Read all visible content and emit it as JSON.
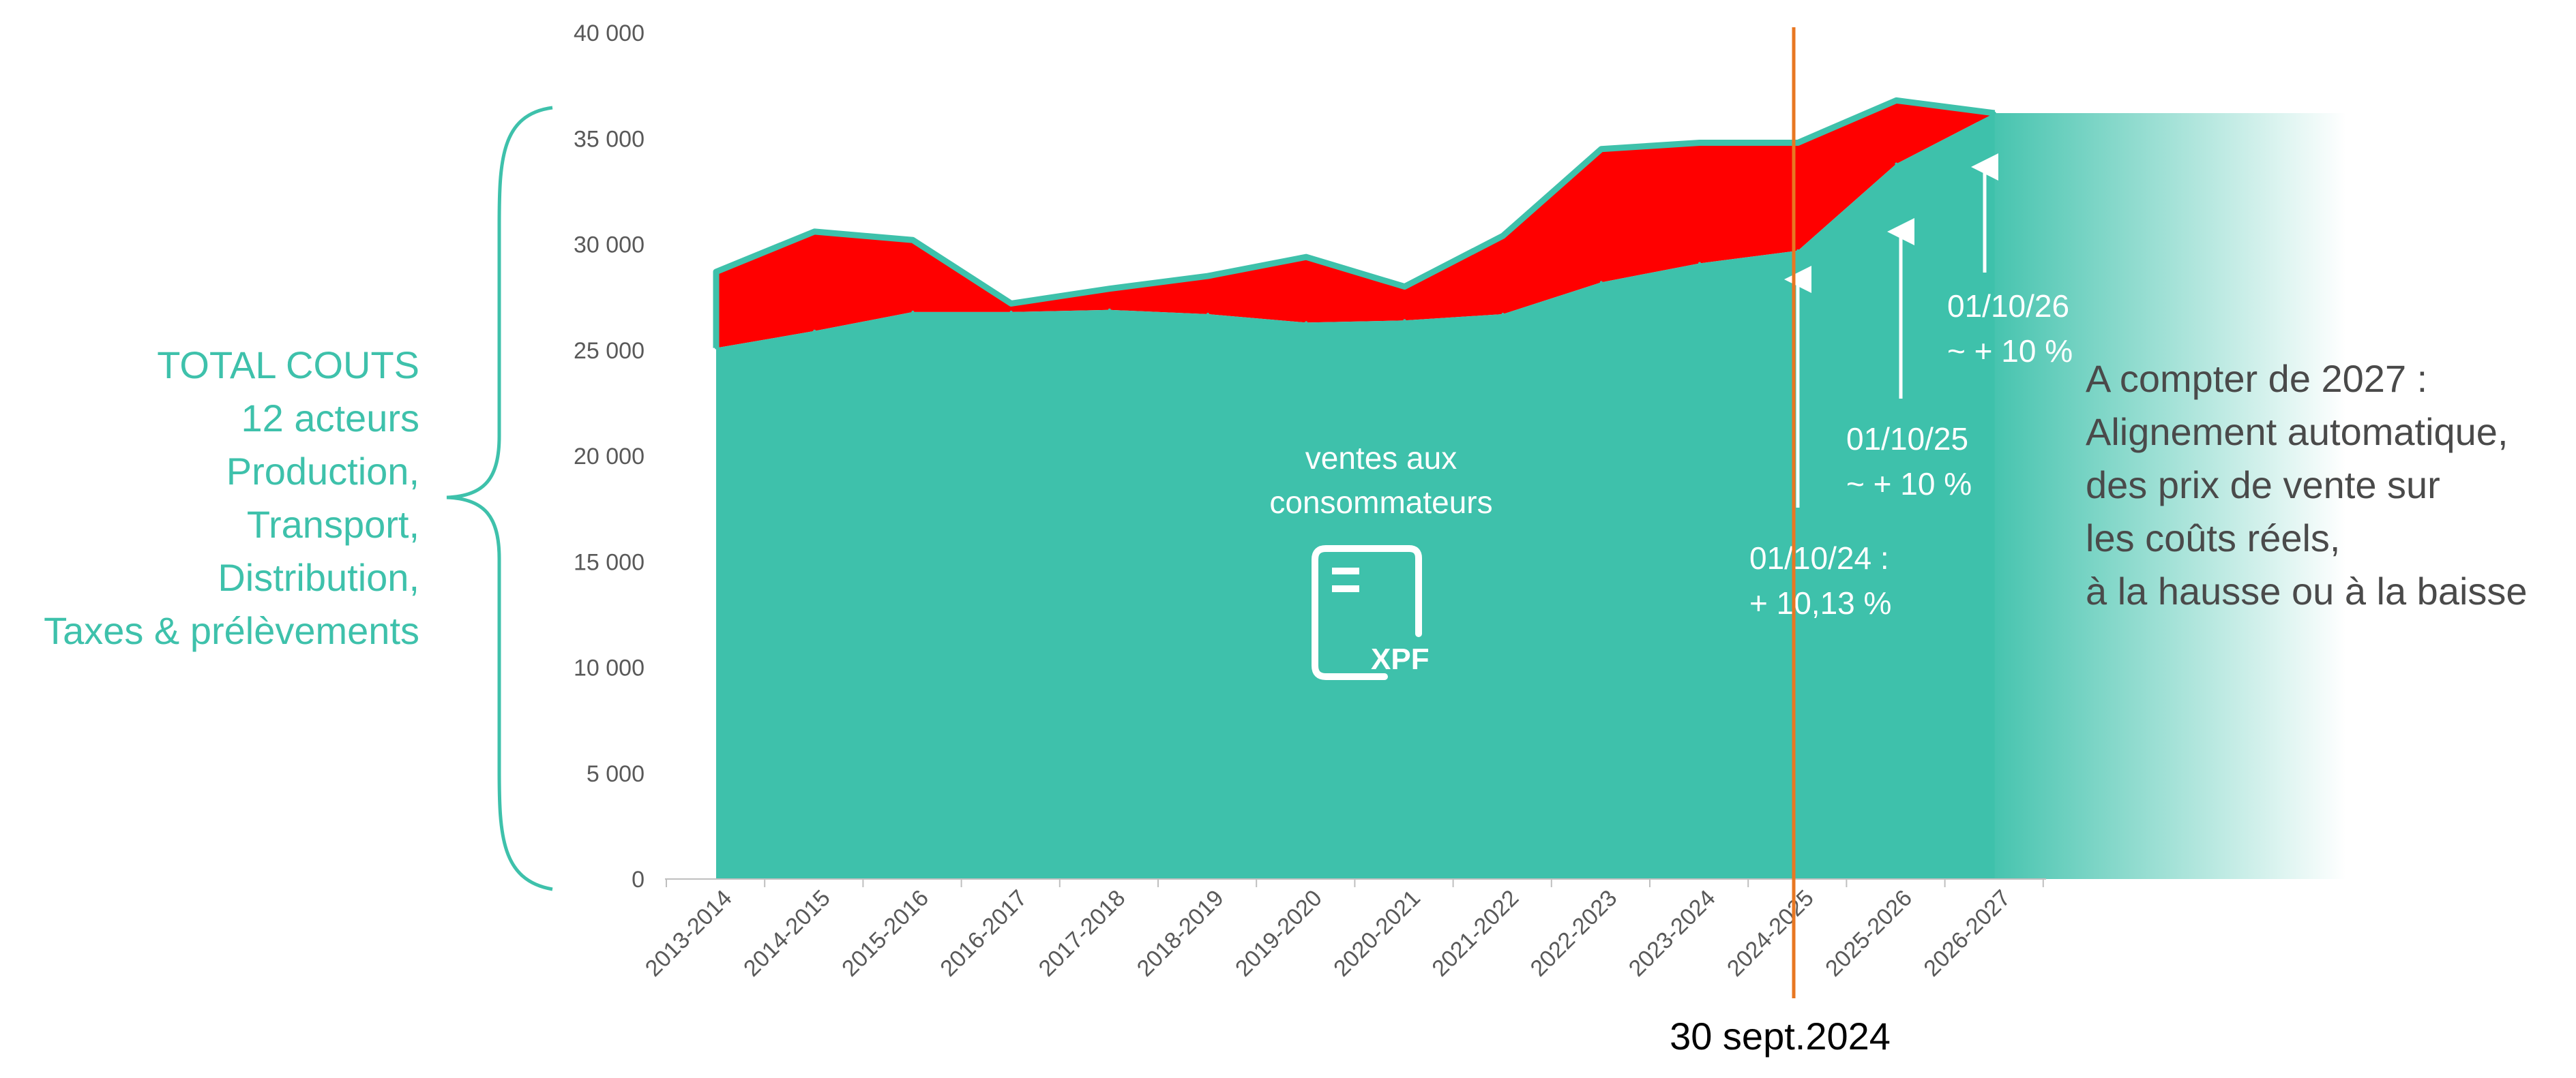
{
  "chart_data": {
    "type": "area",
    "categories": [
      "2013-2014",
      "2014-2015",
      "2015-2016",
      "2016-2017",
      "2017-2018",
      "2018-2019",
      "2019-2020",
      "2020-2021",
      "2021-2022",
      "2022-2023",
      "2023-2024",
      "2024-2025",
      "2025-2026",
      "2026-2027"
    ],
    "series": [
      {
        "name": "",
        "values": [
          25100,
          25900,
          26800,
          26800,
          26900,
          26700,
          26300,
          26400,
          26700,
          28200,
          29100,
          29700,
          33800,
          36200
        ]
      },
      {
        "name": "",
        "values": [
          28700,
          30600,
          30200,
          27200,
          27900,
          28500,
          29400,
          28000,
          30400,
          34500,
          34800,
          34800,
          36800,
          36200
        ]
      }
    ],
    "projection_value": 36200,
    "ylim": [
      0,
      40000
    ],
    "yticks": [
      "0",
      "5 000",
      "10 000",
      "15 000",
      "20 000",
      "25 000",
      "30 000",
      "35 000",
      "40 000"
    ],
    "grid": false,
    "colors": {
      "sales": "#3EC1AB",
      "costs": "#FF0000",
      "marker": "#E87722",
      "side_label": "#3EC1AB"
    },
    "marker_line_category": "2024-2025",
    "marker_label": "30 sept.2024",
    "side_label_lines": [
      "TOTAL COUTS",
      "12 acteurs",
      "Production,",
      "Transport,",
      "Distribution,",
      "Taxes & prélèvements"
    ],
    "inner_label_lines": [
      "ventes aux",
      "consommateurs"
    ],
    "icon": "xpf-invoice-icon",
    "icon_text": "XPF",
    "annotations": [
      {
        "category": "2024-2025",
        "lines": [
          "01/10/24 :",
          "+ 10,13 %"
        ]
      },
      {
        "category": "2025-2026",
        "lines": [
          "01/10/25",
          "~ + 10 %"
        ]
      },
      {
        "category": "2026-2027",
        "lines": [
          "01/10/26",
          "~ + 10 %"
        ]
      }
    ],
    "note_lines": [
      "A compter de 2027 :",
      "Alignement automatique,",
      "des prix de vente sur",
      "les coûts réels,",
      "à la hausse ou à la baisse"
    ]
  }
}
